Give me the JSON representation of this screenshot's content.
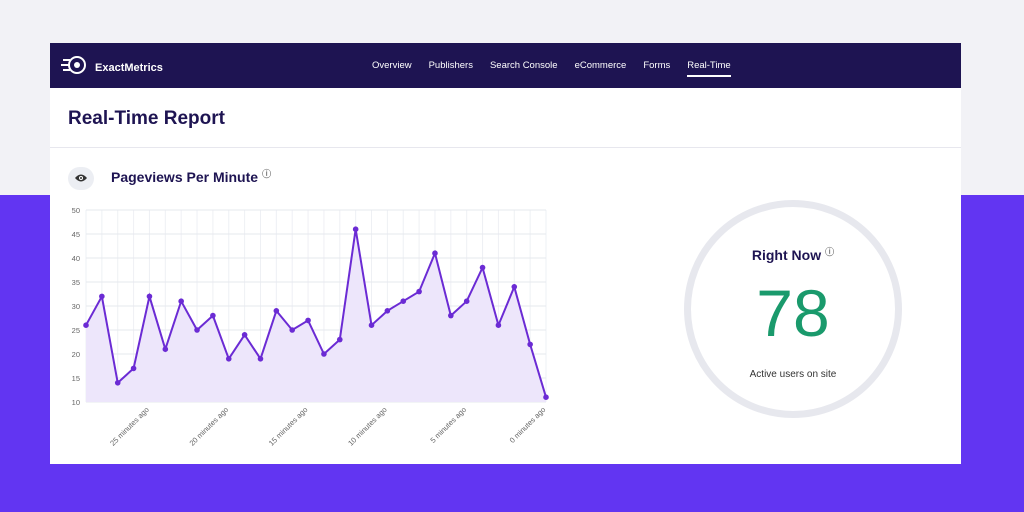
{
  "brand": {
    "name": "ExactMetrics"
  },
  "nav": [
    {
      "label": "Overview",
      "active": false
    },
    {
      "label": "Publishers",
      "active": false
    },
    {
      "label": "Search Console",
      "active": false
    },
    {
      "label": "eCommerce",
      "active": false
    },
    {
      "label": "Forms",
      "active": false
    },
    {
      "label": "Real-Time",
      "active": true
    }
  ],
  "page": {
    "title": "Real-Time Report"
  },
  "section": {
    "title": "Pageviews Per Minute",
    "info_icon": "info-icon",
    "toggle_icon": "eye-icon"
  },
  "right_now": {
    "title": "Right Now",
    "value": "78",
    "caption": "Active users on site",
    "value_color": "#1a9a6c"
  },
  "colors": {
    "accent": "#6235f2",
    "topbar": "#1e1452",
    "line": "#6b2bd4",
    "fill": "#ede6fb"
  },
  "chart_data": {
    "type": "area",
    "title": "Pageviews Per Minute",
    "ylim": [
      10,
      50
    ],
    "yticks": [
      10,
      15,
      20,
      25,
      30,
      35,
      40,
      45,
      50
    ],
    "xtick_labels": [
      "25 minutes ago",
      "20 minutes ago",
      "15 minutes ago",
      "10 minutes ago",
      "5 minutes ago",
      "0 minutes ago"
    ],
    "xtick_indices": [
      5,
      10,
      15,
      20,
      25,
      30
    ],
    "grid": true,
    "series": [
      {
        "values": [
          26,
          32,
          14,
          17,
          32,
          21,
          31,
          25,
          28,
          19,
          24,
          19,
          29,
          25,
          27,
          20,
          23,
          46,
          26,
          29,
          31,
          33,
          41,
          28,
          31,
          38,
          26,
          34,
          22,
          11
        ]
      }
    ]
  }
}
